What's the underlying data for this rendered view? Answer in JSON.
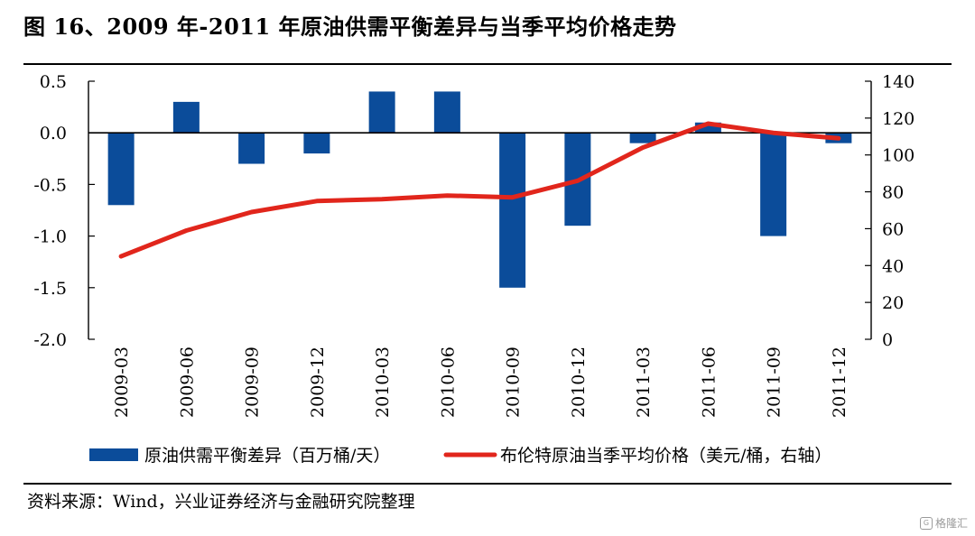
{
  "title": "图 16、2009 年-2011 年原油供需平衡差异与当季平均价格走势",
  "source": "资料来源：Wind，兴业证券经济与金融研究院整理",
  "watermark": "格隆汇",
  "colors": {
    "bar": "#0b4c9a",
    "line": "#e1261c",
    "axis": "#000000"
  },
  "chart_data": {
    "type": "bar",
    "categories": [
      "2009-03",
      "2009-06",
      "2009-09",
      "2009-12",
      "2010-03",
      "2010-06",
      "2010-09",
      "2010-12",
      "2011-03",
      "2011-06",
      "2011-09",
      "2011-12"
    ],
    "series": [
      {
        "name": "原油供需平衡差异（百万桶/天）",
        "type": "bar",
        "axis": "left",
        "values": [
          -0.7,
          0.3,
          -0.3,
          -0.2,
          0.4,
          0.4,
          -1.5,
          -0.9,
          -0.1,
          0.1,
          -1.0,
          -0.1
        ]
      },
      {
        "name": "布伦特原油当季平均价格（美元/桶，右轴）",
        "type": "line",
        "axis": "right",
        "values": [
          45,
          59,
          69,
          75,
          76,
          78,
          77,
          86,
          104,
          117,
          112,
          109
        ]
      }
    ],
    "y_left": {
      "lim": [
        -2.0,
        0.5
      ],
      "ticks": [
        "0.5",
        "0.0",
        "-0.5",
        "-1.0",
        "-1.5",
        "-2.0"
      ]
    },
    "y_right": {
      "lim": [
        0,
        140
      ],
      "ticks": [
        "140",
        "120",
        "100",
        "80",
        "60",
        "40",
        "20",
        "0"
      ]
    },
    "grid": false,
    "legend": "bottom"
  }
}
